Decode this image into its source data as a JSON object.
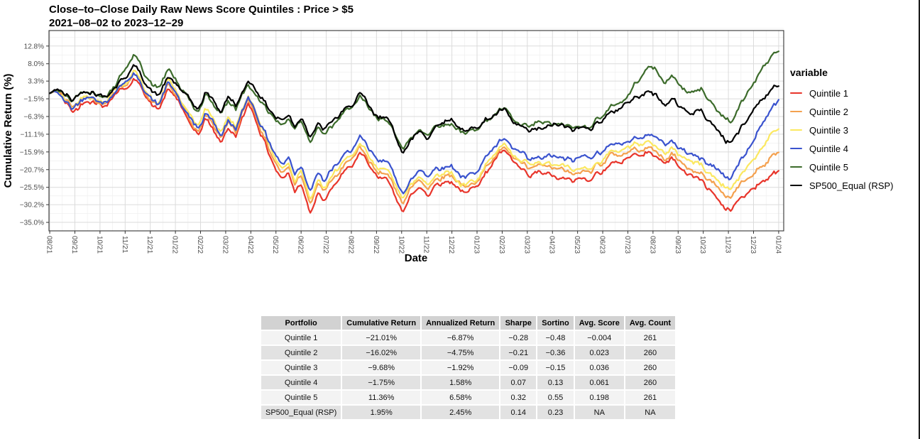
{
  "chart": {
    "title_line1": "Close–to–Close Daily Raw News Score Quintiles : Price > $5",
    "title_line2": "2021–08–02 to 2023–12–29",
    "xlabel": "Date",
    "ylabel": "Cumulative Return (%)",
    "legend_title": "variable"
  },
  "chart_data": {
    "type": "line",
    "title": "Close-to-Close Daily Raw News Score Quintiles : Price > $5",
    "subtitle": "2021-08-02 to 2023-12-29",
    "xlabel": "Date",
    "ylabel": "Cumulative Return (%)",
    "legend_title": "variable",
    "legend_position": "right",
    "grid": true,
    "x_start": "2021-08-02",
    "x_end": "2023-12-29",
    "x_tick_labels": [
      "08/21",
      "09/21",
      "10/21",
      "11/21",
      "12/21",
      "01/22",
      "02/22",
      "03/22",
      "04/22",
      "05/22",
      "06/22",
      "07/22",
      "08/22",
      "09/22",
      "10/22",
      "11/22",
      "12/22",
      "01/23",
      "02/23",
      "03/23",
      "04/23",
      "05/23",
      "06/23",
      "07/23",
      "08/23",
      "09/23",
      "10/23",
      "11/23",
      "12/23",
      "01/24"
    ],
    "y_ticks_pct": [
      12.8,
      8.0,
      3.3,
      -1.5,
      -6.3,
      -11.1,
      -15.9,
      -20.7,
      -25.5,
      -30.2,
      -35.0
    ],
    "ylim": [
      -37.3,
      17.0
    ],
    "xlim_months": [
      -0.03,
      29.2
    ],
    "anchor_months": [
      0,
      0.3,
      0.9,
      1.5,
      1.8,
      2.1,
      2.6,
      3.1,
      3.4,
      3.7,
      3.95,
      4.3,
      4.7,
      5.1,
      5.5,
      5.95,
      6.2,
      6.8,
      7.1,
      7.4,
      7.9,
      8.3,
      8.7,
      9.0,
      9.25,
      9.5,
      9.75,
      10.0,
      10.37,
      10.65,
      10.95,
      11.3,
      11.9,
      12.35,
      12.7,
      13.05,
      13.4,
      13.75,
      14.05,
      14.35,
      14.7,
      15.05,
      15.4,
      16.0,
      16.55,
      16.9,
      17.6,
      18.05,
      18.4,
      18.75,
      19.1,
      19.45,
      20.15,
      20.85,
      21.55,
      22.25,
      22.95,
      23.65,
      24.05,
      24.4,
      24.75,
      25.1,
      25.5,
      25.9,
      26.3,
      26.8,
      27.1,
      27.4,
      27.7,
      28.0,
      28.3,
      28.6,
      29.0
    ],
    "series": [
      {
        "name": "Quintile 1",
        "color": "#e8352b",
        "final_pct": -21.01,
        "values": [
          0,
          0.5,
          -5.0,
          -1.0,
          -2.0,
          -3.5,
          0.5,
          2.0,
          3.5,
          1.0,
          -2.0,
          -4.5,
          0.8,
          -2.0,
          -8.0,
          -11.5,
          -6.5,
          -13.2,
          -9.5,
          -11.5,
          -2.6,
          -8.5,
          -16.5,
          -21.0,
          -23.5,
          -21.5,
          -26.0,
          -24.0,
          -31.5,
          -27.0,
          -29.5,
          -25.5,
          -20.5,
          -16.5,
          -20.0,
          -23.5,
          -22.0,
          -28.5,
          -31.0,
          -28.0,
          -25.5,
          -27.5,
          -24.0,
          -23.5,
          -27.5,
          -25.5,
          -19.5,
          -15.5,
          -18.5,
          -21.0,
          -23.0,
          -21.5,
          -22.5,
          -24.0,
          -22.5,
          -19.5,
          -17.5,
          -15.5,
          -16.5,
          -19.0,
          -18.0,
          -20.0,
          -22.0,
          -23.5,
          -26.5,
          -30.5,
          -31.8,
          -29.0,
          -27.5,
          -25.5,
          -23.5,
          -22.0,
          -21.01
        ]
      },
      {
        "name": "Quintile 2",
        "color": "#f4a14f",
        "final_pct": -16.02,
        "values": [
          0,
          0.6,
          -4.2,
          -0.5,
          -1.5,
          -3.0,
          1.0,
          2.8,
          4.7,
          1.8,
          -1.2,
          -3.8,
          2.2,
          -1.0,
          -7.0,
          -10.3,
          -5.5,
          -11.8,
          -8.5,
          -10.5,
          -1.6,
          -7.5,
          -14.5,
          -19.0,
          -21.5,
          -19.5,
          -24.0,
          -21.5,
          -29.0,
          -24.5,
          -27.0,
          -23.0,
          -18.5,
          -15.0,
          -18.5,
          -22.0,
          -20.5,
          -26.5,
          -29.0,
          -26.0,
          -23.5,
          -25.5,
          -22.5,
          -22.0,
          -26.0,
          -24.0,
          -18.0,
          -14.5,
          -17.5,
          -19.5,
          -21.3,
          -20.0,
          -20.5,
          -22.0,
          -20.5,
          -17.5,
          -15.8,
          -14.2,
          -15.2,
          -17.5,
          -16.5,
          -18.5,
          -20.0,
          -21.5,
          -24.0,
          -27.0,
          -28.0,
          -25.5,
          -23.5,
          -21.5,
          -19.5,
          -17.5,
          -16.02
        ]
      },
      {
        "name": "Quintile 3",
        "color": "#fbe860",
        "final_pct": -9.68,
        "values": [
          0,
          0.7,
          -3.6,
          0.0,
          -1.0,
          -2.5,
          1.5,
          3.5,
          6.3,
          2.5,
          -0.5,
          -3.0,
          3.3,
          -0.3,
          -6.2,
          -9.3,
          -4.2,
          -10.3,
          -7.0,
          -9.0,
          -0.4,
          -6.5,
          -13.5,
          -18.0,
          -20.5,
          -18.5,
          -23.0,
          -20.5,
          -28.0,
          -23.5,
          -26.0,
          -22.0,
          -17.5,
          -14.0,
          -17.5,
          -21.0,
          -19.5,
          -25.5,
          -28.0,
          -25.0,
          -22.5,
          -24.5,
          -21.8,
          -21.5,
          -25.5,
          -23.5,
          -17.0,
          -13.8,
          -16.8,
          -18.5,
          -20.2,
          -19.0,
          -19.5,
          -21.0,
          -19.5,
          -16.5,
          -14.5,
          -13.0,
          -14.0,
          -16.0,
          -15.0,
          -17.0,
          -18.5,
          -20.0,
          -22.0,
          -24.8,
          -25.8,
          -23.0,
          -20.5,
          -17.5,
          -14.5,
          -11.5,
          -9.68
        ]
      },
      {
        "name": "Quintile 4",
        "color": "#3a53ce",
        "final_pct": -1.75,
        "values": [
          0,
          0.4,
          -4.6,
          -0.2,
          -1.2,
          -3.2,
          0.8,
          3.8,
          5.4,
          2.2,
          -0.8,
          -3.5,
          2.6,
          -0.8,
          -6.5,
          -9.8,
          -4.8,
          -11.0,
          -7.5,
          -9.5,
          -0.6,
          -6.8,
          -13.0,
          -17.0,
          -19.5,
          -17.5,
          -21.5,
          -19.0,
          -26.0,
          -21.5,
          -24.0,
          -20.0,
          -15.5,
          -12.2,
          -15.5,
          -19.0,
          -17.5,
          -23.5,
          -26.5,
          -23.5,
          -21.0,
          -22.5,
          -20.0,
          -19.5,
          -23.5,
          -21.5,
          -15.0,
          -12.6,
          -15.0,
          -16.5,
          -18.6,
          -17.2,
          -17.0,
          -18.5,
          -17.0,
          -14.5,
          -12.5,
          -11.3,
          -11.8,
          -14.0,
          -13.0,
          -15.0,
          -16.5,
          -17.5,
          -19.5,
          -21.8,
          -22.8,
          -19.5,
          -16.5,
          -12.5,
          -8.5,
          -5.0,
          -1.75
        ]
      },
      {
        "name": "Quintile 5",
        "color": "#3c6b2b",
        "final_pct": 11.36,
        "values": [
          0,
          0.8,
          -2.5,
          1.2,
          0.2,
          -0.8,
          2.0,
          8.0,
          10.4,
          6.5,
          3.5,
          1.0,
          6.3,
          3.0,
          -1.5,
          -5.0,
          -0.3,
          -5.3,
          -2.3,
          -4.2,
          2.6,
          -0.8,
          -4.8,
          -7.0,
          -8.5,
          -6.8,
          -9.5,
          -7.0,
          -12.5,
          -9.0,
          -11.0,
          -8.5,
          -4.8,
          -1.2,
          -4.5,
          -7.5,
          -6.3,
          -12.0,
          -15.0,
          -12.5,
          -9.5,
          -11.0,
          -8.2,
          -7.8,
          -11.5,
          -9.5,
          -6.5,
          -4.5,
          -7.0,
          -9.0,
          -9.8,
          -8.0,
          -8.5,
          -9.5,
          -8.0,
          -4.8,
          -1.0,
          6.6,
          6.9,
          2.5,
          4.5,
          2.0,
          0.0,
          1.5,
          -2.5,
          -6.5,
          -8.0,
          -4.5,
          -1.0,
          3.0,
          6.5,
          9.5,
          11.36
        ]
      },
      {
        "name": "SP500_Equal (RSP)",
        "color": "#000000",
        "final_pct": 1.95,
        "values": [
          0,
          1.2,
          -1.8,
          1.5,
          0.5,
          -0.8,
          1.8,
          5.5,
          7.4,
          4.0,
          2.0,
          -0.5,
          4.5,
          2.0,
          -1.5,
          -4.3,
          0.3,
          -4.8,
          -1.8,
          -3.6,
          3.4,
          0.2,
          -3.8,
          -6.0,
          -7.5,
          -5.8,
          -8.5,
          -6.0,
          -11.5,
          -8.0,
          -10.0,
          -7.5,
          -3.8,
          -0.2,
          -4.0,
          -7.0,
          -6.0,
          -12.5,
          -15.5,
          -13.0,
          -10.0,
          -11.5,
          -7.8,
          -7.2,
          -11.0,
          -9.0,
          -6.0,
          -4.5,
          -7.5,
          -9.5,
          -11.3,
          -9.8,
          -9.0,
          -10.0,
          -8.5,
          -6.0,
          -3.0,
          0.3,
          -0.2,
          -3.0,
          -1.5,
          -3.5,
          -5.5,
          -4.5,
          -8.0,
          -12.5,
          -13.5,
          -10.5,
          -8.0,
          -4.5,
          -1.5,
          0.5,
          1.95
        ]
      }
    ],
    "colors": {
      "major_grid": "#dbdbdb",
      "minor_grid": "#efefef",
      "panel_border": "#333333",
      "tick_text": "#4d4d4d"
    }
  },
  "table": {
    "headers": [
      "Portfolio",
      "Cumulative Return",
      "Annualized Return",
      "Sharpe",
      "Sortino",
      "Avg. Score",
      "Avg. Count"
    ],
    "rows": [
      [
        "Quintile 1",
        "−21.01%",
        "−6.87%",
        "−0.28",
        "−0.48",
        "−0.004",
        "261"
      ],
      [
        "Quintile 2",
        "−16.02%",
        "−4.75%",
        "−0.21",
        "−0.36",
        "0.023",
        "260"
      ],
      [
        "Quintile 3",
        "−9.68%",
        "−1.92%",
        "−0.09",
        "−0.15",
        "0.036",
        "260"
      ],
      [
        "Quintile 4",
        "−1.75%",
        "1.58%",
        "0.07",
        "0.13",
        "0.061",
        "260"
      ],
      [
        "Quintile 5",
        "11.36%",
        "6.58%",
        "0.32",
        "0.55",
        "0.198",
        "261"
      ],
      [
        "SP500_Equal (RSP)",
        "1.95%",
        "2.45%",
        "0.14",
        "0.23",
        "NA",
        "NA"
      ]
    ]
  }
}
